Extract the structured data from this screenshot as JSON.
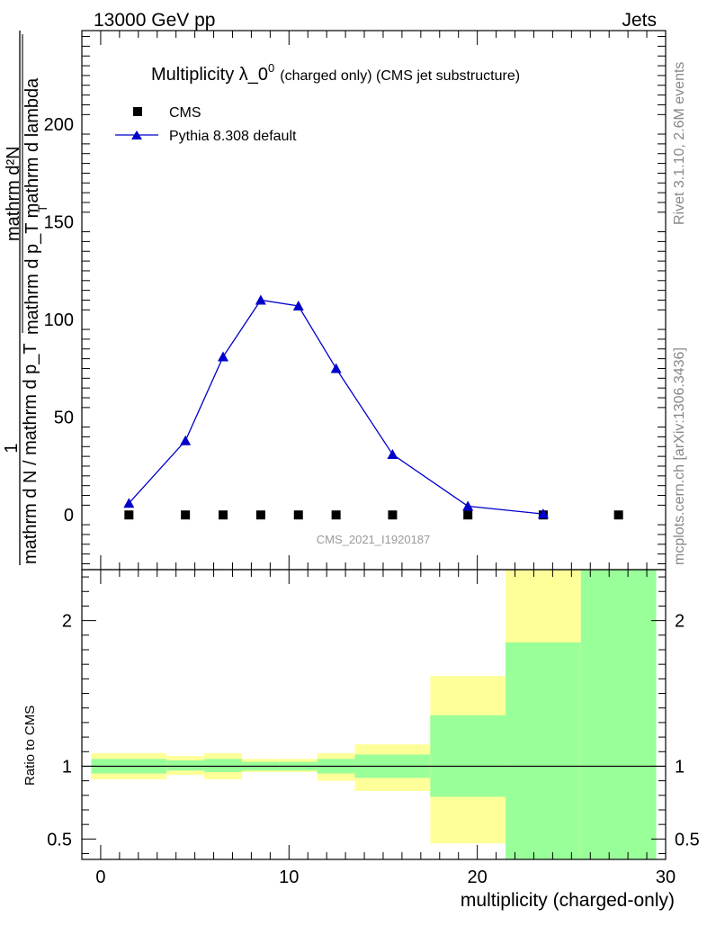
{
  "header": {
    "left": "13000 GeV pp",
    "right": "Jets"
  },
  "side_labels": {
    "rivet": "Rivet 3.1.10,  2.6M events",
    "mcplots": "mcplots.cern.ch [arXiv:1306.3436]"
  },
  "colors": {
    "mc_line": "#0000cc",
    "stat_band": "#99ff99",
    "total_band": "#ffff99",
    "data_marker": "#000000"
  },
  "chart_data": [
    {
      "type": "scatter",
      "title": "Multiplicity λ_0",
      "title_sup": "0",
      "title_suffix": "(charged only) (CMS jet substructure)",
      "analysis_label": "CMS_2021_I1920187",
      "ylabel": {
        "numerator_top": "1",
        "fraction_top": "mathrm d²N",
        "fraction_bottom": "mathrm d p_T mathrm d lambda",
        "denominator": "mathrm d N / mathrm d p_T",
        "sub_T": "T"
      },
      "xlim": [
        -1,
        30
      ],
      "ylim": [
        -28,
        248
      ],
      "y_ticks": [
        0,
        50,
        100,
        150,
        200
      ],
      "series": [
        {
          "name": "CMS",
          "marker": "square",
          "x": [
            1.5,
            4.5,
            6.5,
            8.5,
            10.5,
            12.5,
            15.5,
            19.5,
            23.5,
            27.5
          ],
          "y": [
            0,
            0,
            0,
            0,
            0,
            0,
            0,
            0,
            0,
            0
          ]
        },
        {
          "name": "Pythia 8.308 default",
          "marker": "triangle",
          "x": [
            1.5,
            4.5,
            6.5,
            8.5,
            10.5,
            12.5,
            15.5,
            19.5,
            23.5
          ],
          "y": [
            6,
            38,
            81,
            110,
            107,
            75,
            31,
            4.5,
            0.5
          ]
        }
      ]
    },
    {
      "type": "area",
      "ylabel": "Ratio to CMS",
      "xlabel": "multiplicity (charged-only)",
      "xlim": [
        -1,
        30
      ],
      "ylim": [
        0.36,
        2.35
      ],
      "y_ticks": [
        0.5,
        1,
        2
      ],
      "x_ticks": [
        0,
        10,
        20,
        30
      ],
      "reference_line": 1,
      "bins": [
        {
          "lo": -0.5,
          "hi": 3.5,
          "stat": [
            0.95,
            1.05
          ],
          "total": [
            0.91,
            1.09
          ]
        },
        {
          "lo": 3.5,
          "hi": 5.5,
          "stat": [
            0.97,
            1.04
          ],
          "total": [
            0.94,
            1.07
          ]
        },
        {
          "lo": 5.5,
          "hi": 7.5,
          "stat": [
            0.96,
            1.05
          ],
          "total": [
            0.91,
            1.09
          ]
        },
        {
          "lo": 7.5,
          "hi": 9.5,
          "stat": [
            0.97,
            1.03
          ],
          "total": [
            0.96,
            1.05
          ]
        },
        {
          "lo": 9.5,
          "hi": 11.5,
          "stat": [
            0.97,
            1.03
          ],
          "total": [
            0.96,
            1.05
          ]
        },
        {
          "lo": 11.5,
          "hi": 13.5,
          "stat": [
            0.95,
            1.05
          ],
          "total": [
            0.9,
            1.09
          ]
        },
        {
          "lo": 13.5,
          "hi": 17.5,
          "stat": [
            0.92,
            1.08
          ],
          "total": [
            0.83,
            1.15
          ]
        },
        {
          "lo": 17.5,
          "hi": 21.5,
          "stat": [
            0.79,
            1.35
          ],
          "total": [
            0.47,
            1.62
          ]
        },
        {
          "lo": 21.5,
          "hi": 25.5,
          "stat": [
            0.36,
            1.85
          ],
          "total": [
            0.36,
            2.35
          ]
        },
        {
          "lo": 25.5,
          "hi": 29.5,
          "stat": [
            0.36,
            2.35
          ],
          "total": [
            0.36,
            2.35
          ]
        }
      ]
    }
  ]
}
